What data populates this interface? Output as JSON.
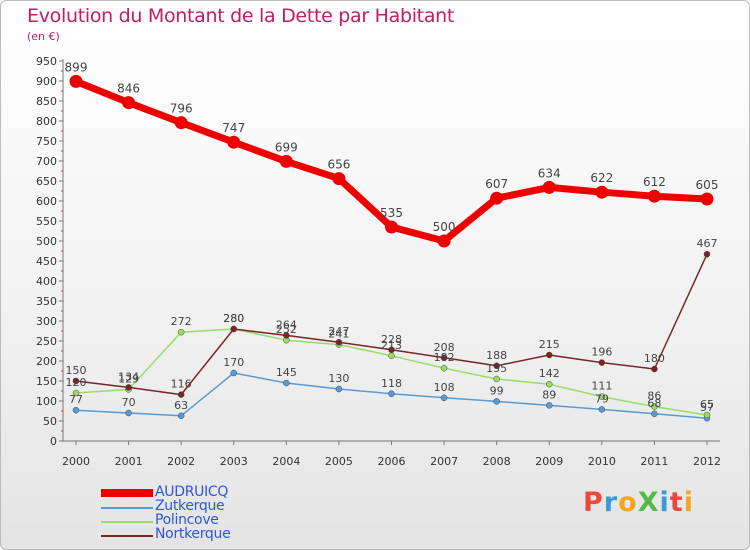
{
  "chart_data": {
    "type": "line",
    "title": "Evolution du Montant de la Dette par Habitant",
    "subtitle": "(en €)",
    "xlabel": "",
    "ylabel": "",
    "ylim": [
      0,
      950
    ],
    "ytick_step": 50,
    "grid": false,
    "legend_position": "bottom-left",
    "categories": [
      "2000",
      "2001",
      "2002",
      "2003",
      "2004",
      "2005",
      "2006",
      "2007",
      "2008",
      "2009",
      "2010",
      "2011",
      "2012"
    ],
    "series": [
      {
        "name": "AUDRUICQ",
        "color": "#ee0000",
        "values": [
          899,
          846,
          796,
          747,
          699,
          656,
          535,
          500,
          607,
          634,
          622,
          612,
          605
        ]
      },
      {
        "name": "Zutkerque",
        "color": "#5a9ad4",
        "values": [
          77,
          70,
          63,
          170,
          145,
          130,
          118,
          108,
          99,
          89,
          79,
          68,
          57
        ]
      },
      {
        "name": "Polincove",
        "color": "#99dd66",
        "values": [
          120,
          129,
          272,
          280,
          252,
          241,
          213,
          182,
          155,
          142,
          111,
          86,
          65
        ]
      },
      {
        "name": "Nortkerque",
        "color": "#7a2424",
        "values": [
          150,
          134,
          116,
          280,
          264,
          247,
          228,
          208,
          188,
          215,
          196,
          180,
          467
        ]
      }
    ]
  },
  "logo": {
    "text": "ProXiti",
    "letters": [
      "P",
      "r",
      "o",
      "X",
      "i",
      "t",
      "i"
    ],
    "colors": [
      "#e84b3c",
      "#3a9ad9",
      "#f4a621",
      "#55b848",
      "#3a9ad9",
      "#e84b3c",
      "#f4a621"
    ]
  }
}
